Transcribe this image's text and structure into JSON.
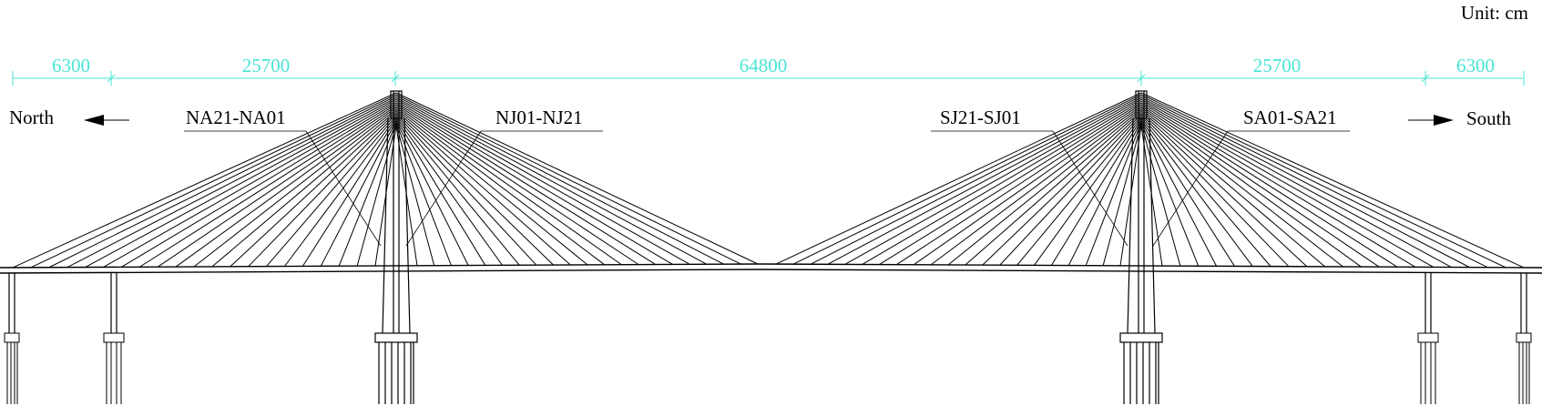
{
  "unit_label": "Unit: cm",
  "dimensions": [
    "6300",
    "25700",
    "64800",
    "25700",
    "6300"
  ],
  "labels": {
    "north": "North",
    "south": "South",
    "na": "NA21-NA01",
    "nj": "NJ01-NJ21",
    "sj": "SJ21-SJ01",
    "sa": "SA01-SA21"
  },
  "colors": {
    "dimension": "#48e6d6",
    "lines": "#000000"
  }
}
